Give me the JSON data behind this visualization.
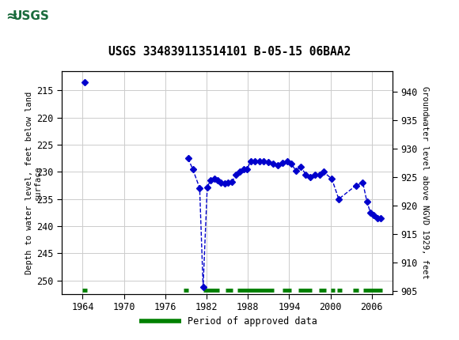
{
  "title": "USGS 334839113514101 B-05-15 06BAA2",
  "header_color": "#1a6b3c",
  "ylabel_left": "Depth to water level, feet below land\nsurface",
  "ylabel_right": "Groundwater level above NGVD 1929, feet",
  "xlim": [
    1961,
    2009
  ],
  "ylim_left": [
    252.5,
    211.5
  ],
  "ylim_right": [
    904.5,
    943.5
  ],
  "xticks": [
    1964,
    1970,
    1976,
    1982,
    1988,
    1994,
    2000,
    2006
  ],
  "yticks_left": [
    215,
    220,
    225,
    230,
    235,
    240,
    245,
    250
  ],
  "grid_color": "#cccccc",
  "background_color": "#ffffff",
  "blue_segments": [
    {
      "x": [
        1964.3
      ],
      "y": [
        213.5
      ]
    },
    {
      "x": [
        1979.3,
        1980.0,
        1981.0,
        1981.5,
        1982.1,
        1982.6,
        1983.1,
        1983.6,
        1984.1,
        1984.6,
        1985.1,
        1985.7,
        1986.3,
        1986.8,
        1987.4,
        1987.9,
        1988.4,
        1989.0,
        1989.7,
        1990.3,
        1991.0,
        1991.7,
        1992.4,
        1993.0,
        1993.7,
        1994.3,
        1995.0,
        1995.7,
        1996.4,
        1997.0,
        1997.7,
        1998.4,
        1999.0,
        2000.2,
        2001.2,
        2003.7,
        2004.7,
        2005.3,
        2005.8,
        2006.3,
        2006.8,
        2007.3
      ],
      "y": [
        227.5,
        229.5,
        233.0,
        251.2,
        232.8,
        231.5,
        231.2,
        231.5,
        232.0,
        232.2,
        232.0,
        231.8,
        230.5,
        230.0,
        229.5,
        229.5,
        228.0,
        228.0,
        228.0,
        228.0,
        228.2,
        228.5,
        228.8,
        228.3,
        228.0,
        228.5,
        229.8,
        229.0,
        230.5,
        231.0,
        230.5,
        230.5,
        230.0,
        231.3,
        235.0,
        232.5,
        232.0,
        235.5,
        237.5,
        238.0,
        238.5,
        238.5
      ]
    }
  ],
  "green_data_segments": [
    {
      "x_start": 1964.0,
      "x_end": 1964.7
    },
    {
      "x_start": 1978.7,
      "x_end": 1979.3
    },
    {
      "x_start": 1981.5,
      "x_end": 1983.8
    },
    {
      "x_start": 1984.8,
      "x_end": 1985.8
    },
    {
      "x_start": 1986.5,
      "x_end": 1991.8
    },
    {
      "x_start": 1993.0,
      "x_end": 1994.3
    },
    {
      "x_start": 1995.3,
      "x_end": 1997.3
    },
    {
      "x_start": 1998.3,
      "x_end": 1999.3
    },
    {
      "x_start": 2000.0,
      "x_end": 2000.6
    },
    {
      "x_start": 2001.0,
      "x_end": 2001.6
    },
    {
      "x_start": 2003.3,
      "x_end": 2004.1
    },
    {
      "x_start": 2004.8,
      "x_end": 2007.5
    }
  ],
  "green_y": 251.8,
  "blue_color": "#0000cc",
  "green_color": "#008000",
  "legend_label": "Period of approved data",
  "font_family": "monospace"
}
